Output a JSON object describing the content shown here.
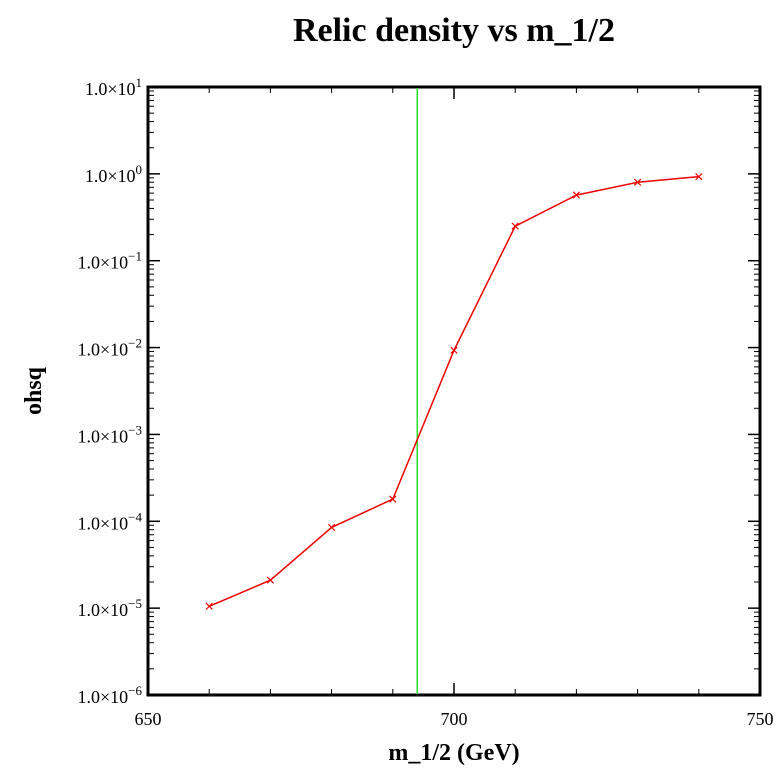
{
  "chart_data": {
    "type": "line",
    "title": "Relic density vs m_1/2",
    "xlabel": "m_1/2 (GeV)",
    "ylabel": "ohsq",
    "xlim": [
      650,
      750
    ],
    "ylim": [
      1e-06,
      10
    ],
    "y_scale": "log",
    "grid": false,
    "x_ticks": [
      {
        "value": 650,
        "label": "650"
      },
      {
        "value": 700,
        "label": "700"
      },
      {
        "value": 750,
        "label": "750"
      }
    ],
    "y_ticks": [
      {
        "value": 10,
        "mantissa": "1.0×10",
        "exponent": "1"
      },
      {
        "value": 1,
        "mantissa": "1.0×10",
        "exponent": "0"
      },
      {
        "value": 0.1,
        "mantissa": "1.0×10",
        "exponent": "−1"
      },
      {
        "value": 0.01,
        "mantissa": "1.0×10",
        "exponent": "−2"
      },
      {
        "value": 0.001,
        "mantissa": "1.0×10",
        "exponent": "−3"
      },
      {
        "value": 0.0001,
        "mantissa": "1.0×10",
        "exponent": "−4"
      },
      {
        "value": 1e-05,
        "mantissa": "1.0×10",
        "exponent": "−5"
      },
      {
        "value": 1e-06,
        "mantissa": "1.0×10",
        "exponent": "−6"
      }
    ],
    "series": [
      {
        "color": "#ee0000",
        "marker": "x",
        "x": [
          660,
          670,
          680,
          690,
          700,
          710,
          720,
          730,
          740
        ],
        "y": [
          1.05e-05,
          2.1e-05,
          8.5e-05,
          0.00018,
          0.0093,
          0.25,
          0.57,
          0.8,
          0.93
        ]
      }
    ],
    "vertical_lines": [
      {
        "x": 694,
        "color": "#33dd33"
      }
    ]
  }
}
